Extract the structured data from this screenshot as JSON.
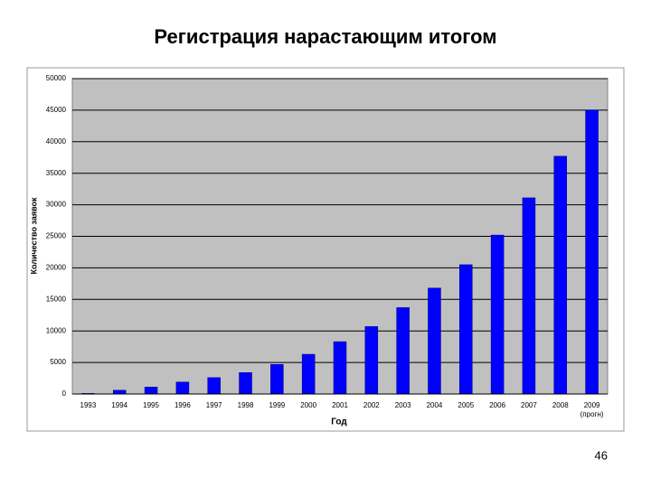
{
  "chart_data": {
    "type": "bar",
    "title": "Регистрация нарастающим итогом",
    "x_label": "Год",
    "y_label": "Количество заявок",
    "categories": [
      "1993",
      "1994",
      "1995",
      "1996",
      "1997",
      "1998",
      "1999",
      "2000",
      "2001",
      "2002",
      "2003",
      "2004",
      "2005",
      "2006",
      "2007",
      "2008",
      "2009"
    ],
    "x_note": "(прогн)",
    "values": [
      100,
      600,
      1100,
      1900,
      2600,
      3400,
      4700,
      6300,
      8300,
      10700,
      13700,
      16800,
      20500,
      25200,
      31100,
      37700,
      45000
    ],
    "color": "#0000ff",
    "ylim": [
      0,
      50000
    ],
    "yticks": [
      0,
      5000,
      10000,
      15000,
      20000,
      25000,
      30000,
      35000,
      40000,
      45000,
      50000
    ],
    "grid": true
  },
  "slide": {
    "page": "46"
  }
}
